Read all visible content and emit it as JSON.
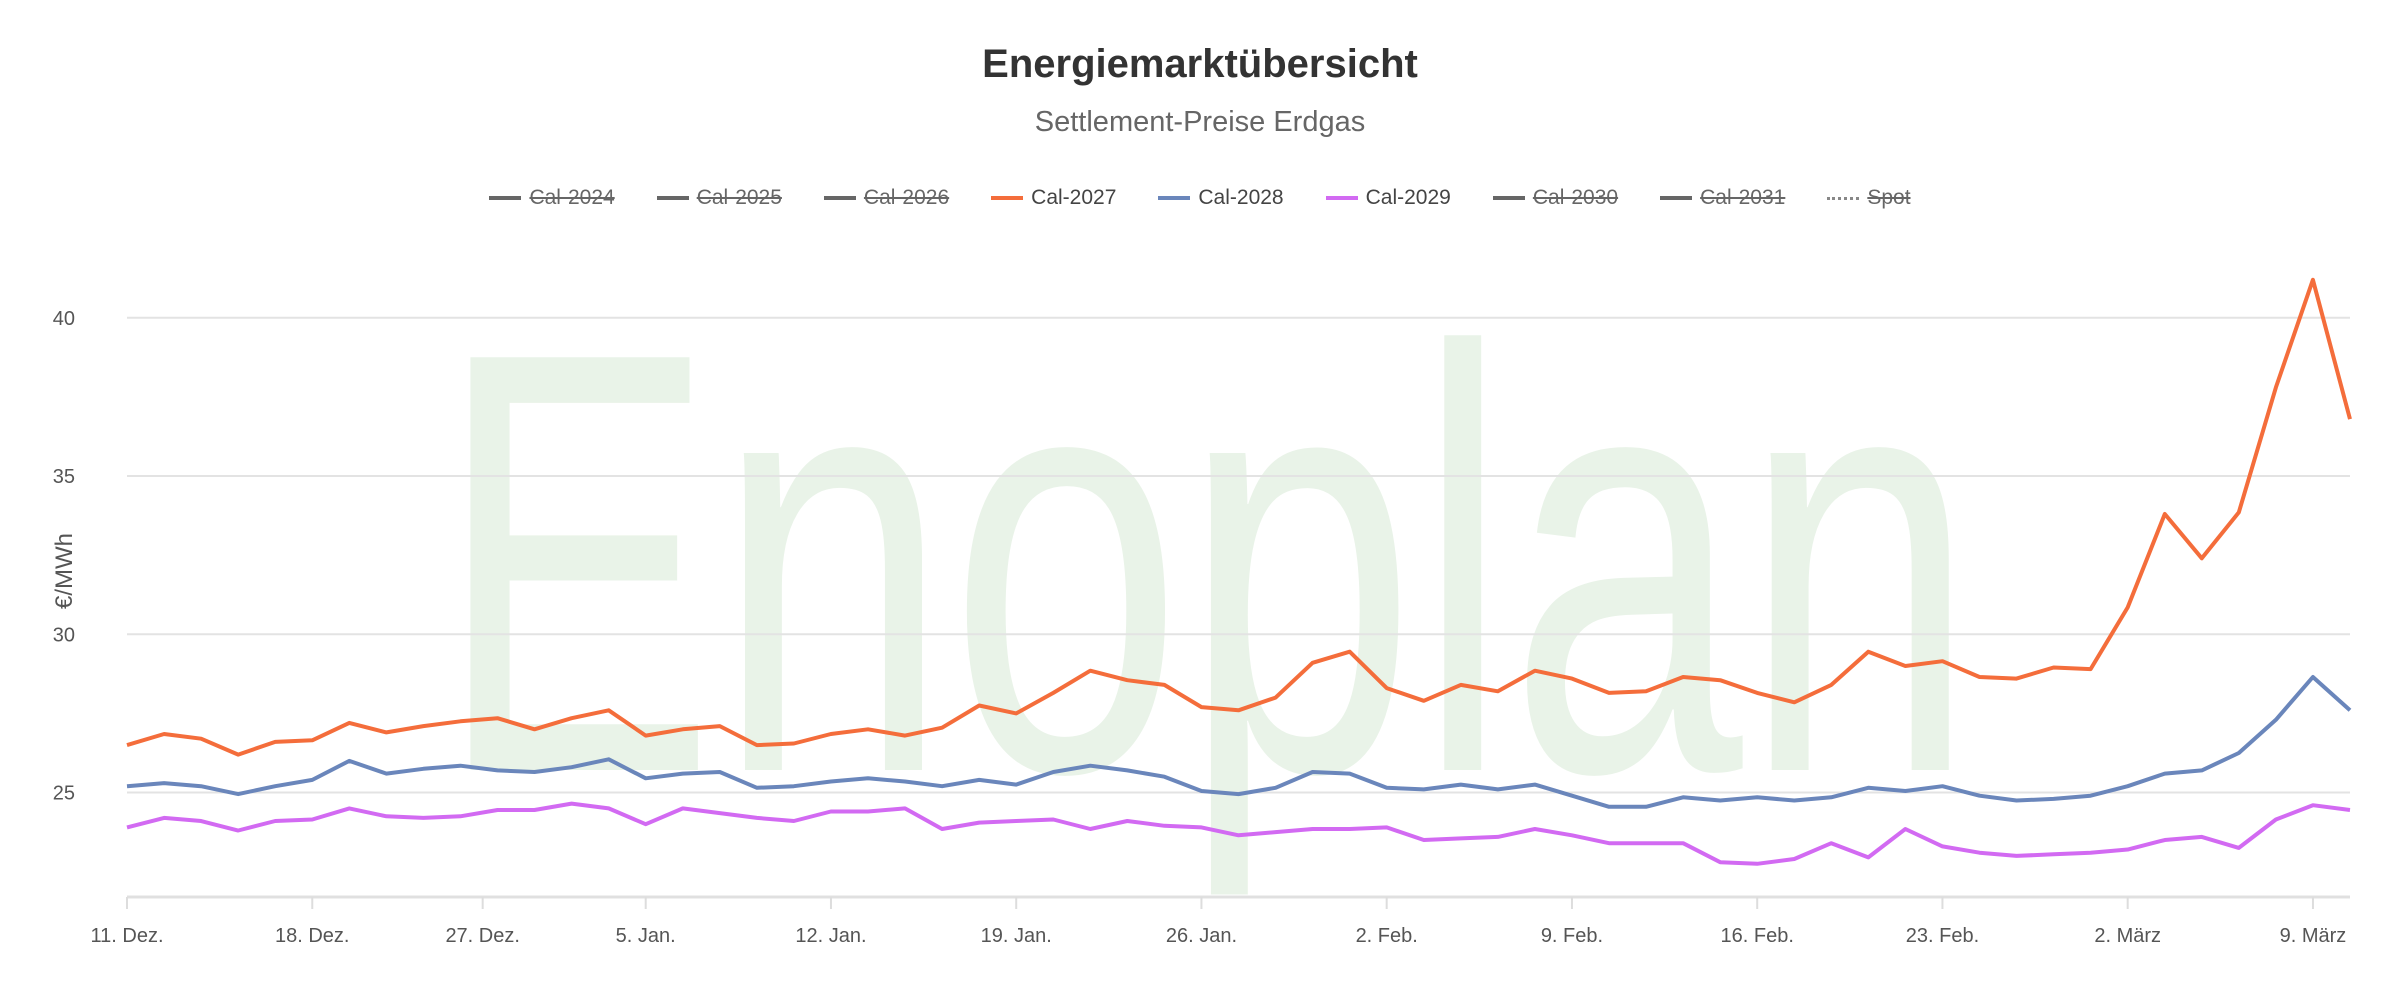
{
  "chart_data": {
    "type": "line",
    "title": "Energiemarktübersicht",
    "subtitle": "Settlement-Preise Erdgas",
    "ylabel": "€/MWh",
    "xlabel": "",
    "watermark": "Enoplan",
    "ylim": [
      21.7,
      42.3
    ],
    "xlim": [
      0,
      60
    ],
    "yticks": [
      25,
      30,
      35,
      40
    ],
    "xticks": [
      {
        "label": "11. Dez.",
        "index": 0
      },
      {
        "label": "18. Dez.",
        "index": 5
      },
      {
        "label": "27. Dez.",
        "index": 9.6
      },
      {
        "label": "5. Jan.",
        "index": 14
      },
      {
        "label": "12. Jan.",
        "index": 19
      },
      {
        "label": "19. Jan.",
        "index": 24
      },
      {
        "label": "26. Jan.",
        "index": 29
      },
      {
        "label": "2. Feb.",
        "index": 34
      },
      {
        "label": "9. Feb.",
        "index": 39
      },
      {
        "label": "16. Feb.",
        "index": 44
      },
      {
        "label": "23. Feb.",
        "index": 49
      },
      {
        "label": "2. März",
        "index": 54
      },
      {
        "label": "9. März",
        "index": 59
      }
    ],
    "grid": true,
    "legend_position": "top-center",
    "legend": [
      {
        "name": "Cal-2024",
        "visible": false,
        "color": "#666666"
      },
      {
        "name": "Cal-2025",
        "visible": false,
        "color": "#666666"
      },
      {
        "name": "Cal-2026",
        "visible": false,
        "color": "#666666"
      },
      {
        "name": "Cal-2027",
        "visible": true,
        "color": "#f46d3b"
      },
      {
        "name": "Cal-2028",
        "visible": true,
        "color": "#6a86bb"
      },
      {
        "name": "Cal-2029",
        "visible": true,
        "color": "#d26af2"
      },
      {
        "name": "Cal-2030",
        "visible": false,
        "color": "#666666"
      },
      {
        "name": "Cal-2031",
        "visible": false,
        "color": "#666666"
      },
      {
        "name": "Spot",
        "visible": false,
        "color": "#888888",
        "dotted": true
      }
    ],
    "series": [
      {
        "name": "Cal-2027",
        "color": "#f46d3b",
        "values": [
          26.5,
          26.85,
          26.7,
          26.2,
          26.6,
          26.65,
          27.2,
          26.9,
          27.1,
          27.25,
          27.35,
          27.0,
          27.35,
          27.6,
          26.8,
          27.0,
          27.1,
          26.5,
          26.55,
          26.85,
          27.0,
          26.8,
          27.05,
          27.75,
          27.5,
          28.15,
          28.85,
          28.55,
          28.4,
          27.7,
          27.6,
          28.0,
          29.1,
          29.45,
          28.3,
          27.9,
          28.4,
          28.2,
          28.85,
          28.6,
          28.15,
          28.2,
          28.65,
          28.55,
          28.15,
          27.85,
          28.4,
          29.45,
          29.0,
          29.15,
          28.65,
          28.6,
          28.95,
          28.9,
          30.85,
          33.8,
          32.4,
          33.85,
          37.8,
          41.2,
          36.8
        ]
      },
      {
        "name": "Cal-2028",
        "color": "#6a86bb",
        "values": [
          25.2,
          25.3,
          25.2,
          24.95,
          25.2,
          25.4,
          26.0,
          25.6,
          25.75,
          25.85,
          25.7,
          25.65,
          25.8,
          26.05,
          25.45,
          25.6,
          25.65,
          25.15,
          25.2,
          25.35,
          25.45,
          25.35,
          25.2,
          25.4,
          25.25,
          25.65,
          25.85,
          25.7,
          25.5,
          25.05,
          24.95,
          25.15,
          25.65,
          25.6,
          25.15,
          25.1,
          25.25,
          25.1,
          25.25,
          24.9,
          24.55,
          24.55,
          24.85,
          24.75,
          24.85,
          24.75,
          24.85,
          25.15,
          25.05,
          25.2,
          24.9,
          24.75,
          24.8,
          24.9,
          25.2,
          25.6,
          25.7,
          26.25,
          27.3,
          28.65,
          27.6
        ]
      },
      {
        "name": "Cal-2029",
        "color": "#d26af2",
        "values": [
          23.9,
          24.2,
          24.1,
          23.8,
          24.1,
          24.15,
          24.5,
          24.25,
          24.2,
          24.25,
          24.45,
          24.45,
          24.65,
          24.5,
          24.0,
          24.5,
          24.35,
          24.2,
          24.1,
          24.4,
          24.4,
          24.5,
          23.85,
          24.05,
          24.1,
          24.15,
          23.85,
          24.1,
          23.95,
          23.9,
          23.65,
          23.75,
          23.85,
          23.85,
          23.9,
          23.5,
          23.55,
          23.6,
          23.85,
          23.65,
          23.4,
          23.4,
          23.4,
          22.8,
          22.75,
          22.9,
          23.4,
          22.95,
          23.85,
          23.3,
          23.1,
          23.0,
          23.05,
          23.1,
          23.2,
          23.5,
          23.6,
          23.25,
          24.15,
          24.6,
          24.45
        ]
      }
    ]
  }
}
